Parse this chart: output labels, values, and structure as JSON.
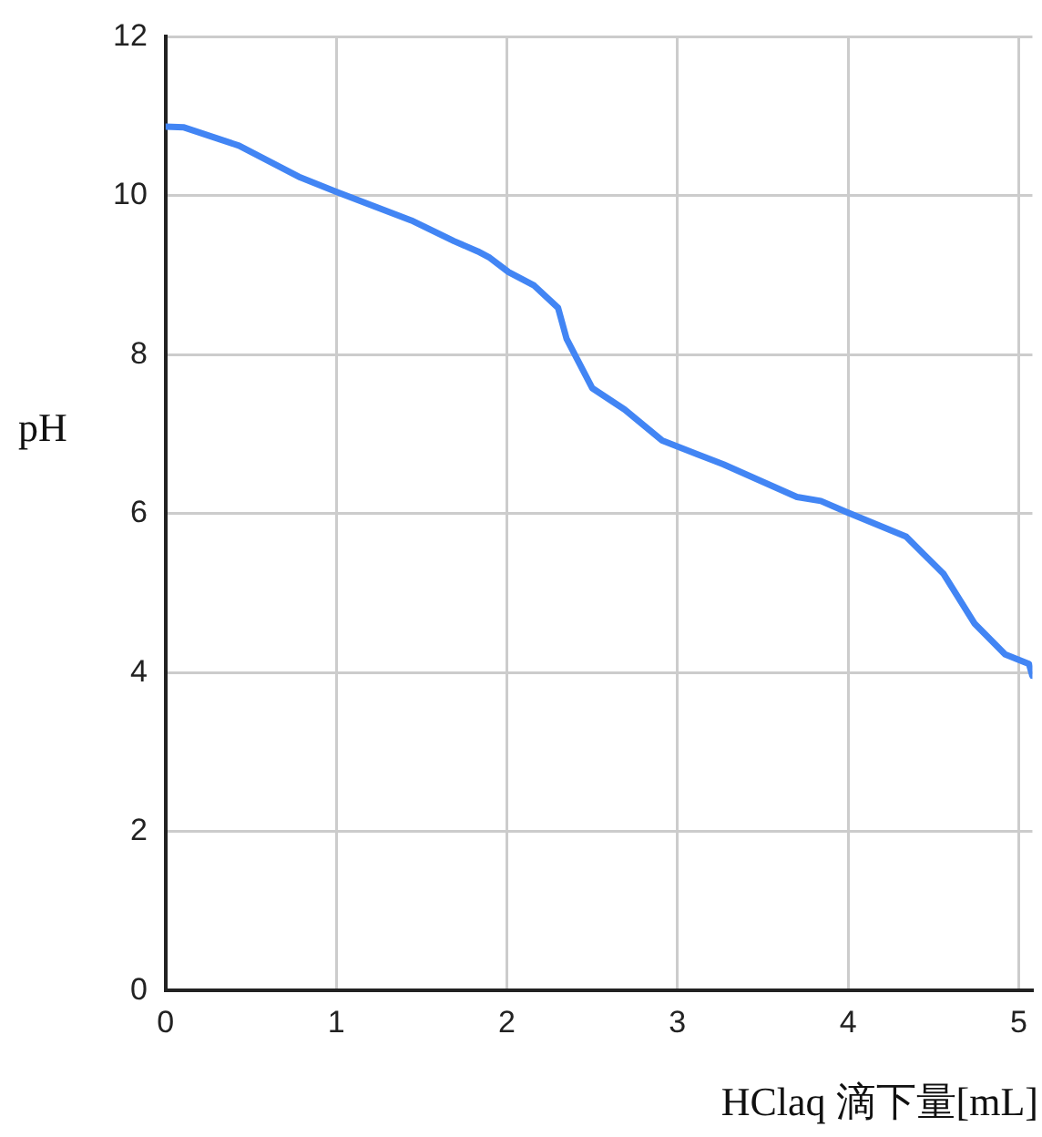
{
  "chart_data": {
    "type": "line",
    "xlabel": "HClaq 滴下量[mL]",
    "ylabel": "pH",
    "x": [
      0,
      0.108,
      0.43,
      0.79,
      1.0,
      1.44,
      1.69,
      1.83,
      1.9,
      2.01,
      2.16,
      2.3,
      2.35,
      2.5,
      2.69,
      2.91,
      3.27,
      3.7,
      3.84,
      3.99,
      4.34,
      4.56,
      4.74,
      4.92,
      5.06,
      5.08
    ],
    "series": [
      {
        "color": "#4285f4",
        "values": [
          10.87,
          10.86,
          10.63,
          10.23,
          10.05,
          9.69,
          9.43,
          9.3,
          9.22,
          9.04,
          8.87,
          8.59,
          8.2,
          7.58,
          7.31,
          6.92,
          6.62,
          6.21,
          6.16,
          6.02,
          5.71,
          5.24,
          4.62,
          4.23,
          4.11,
          3.96
        ]
      }
    ],
    "xlim": [
      0,
      5.08
    ],
    "xticks": [
      0,
      1,
      2,
      3,
      4,
      5
    ],
    "ylim": [
      0,
      12
    ],
    "yticks": [
      0,
      2,
      4,
      6,
      8,
      10,
      12
    ],
    "grid": true,
    "legend": false,
    "marker": "none",
    "line_style": "solid"
  }
}
